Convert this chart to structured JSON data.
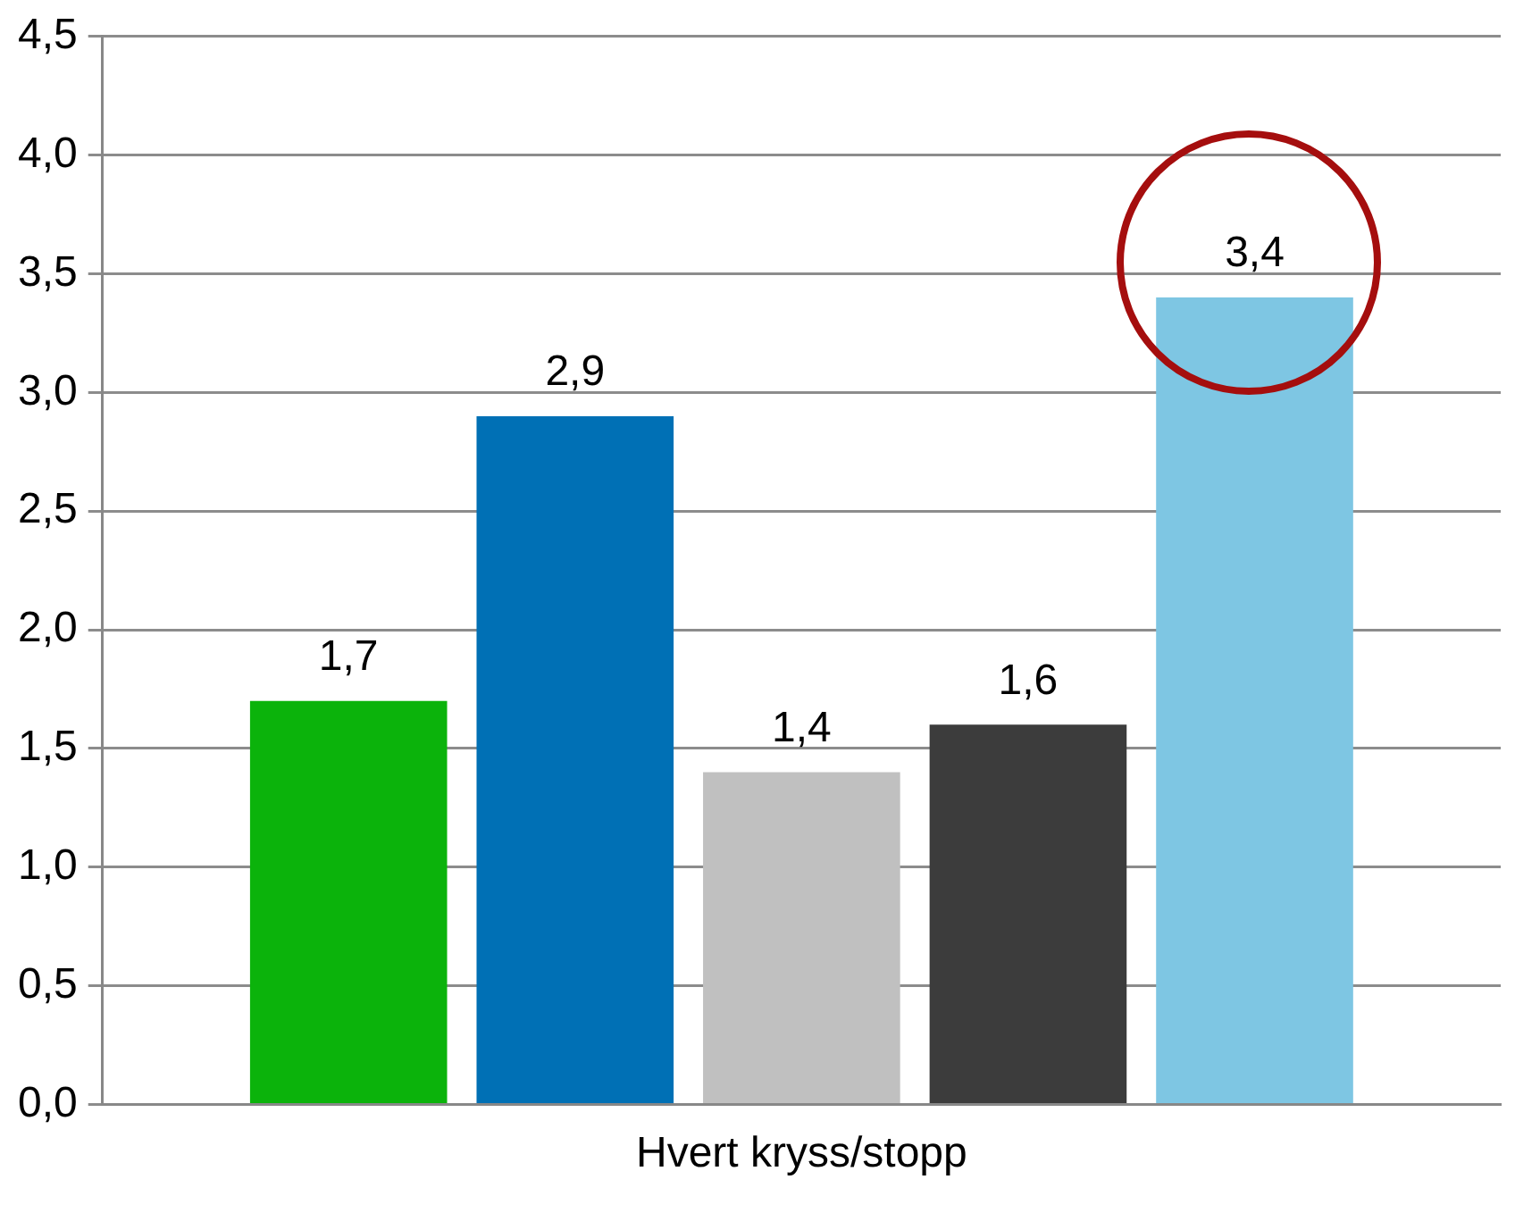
{
  "chart_data": {
    "type": "bar",
    "categories": [
      "Hvert kryss/stopp"
    ],
    "series": [
      {
        "color": "#0bb30b",
        "values": [
          1.7
        ],
        "value_labels": [
          "1,7"
        ]
      },
      {
        "color": "#0070b5",
        "values": [
          2.9
        ],
        "value_labels": [
          "2,9"
        ]
      },
      {
        "color": "#c0c0c0",
        "values": [
          1.4
        ],
        "value_labels": [
          "1,4"
        ]
      },
      {
        "color": "#3c3c3c",
        "values": [
          1.6
        ],
        "value_labels": [
          "1,6"
        ]
      },
      {
        "color": "#7ec6e3",
        "values": [
          3.4
        ],
        "value_labels": [
          "3,4"
        ]
      }
    ],
    "ylim": [
      0,
      4.5
    ],
    "yticks": [
      {
        "value": 0,
        "label": "0,0"
      },
      {
        "value": 0.5,
        "label": "0,5"
      },
      {
        "value": 1,
        "label": "1,0"
      },
      {
        "value": 1.5,
        "label": "1,5"
      },
      {
        "value": 2,
        "label": "2,0"
      },
      {
        "value": 2.5,
        "label": "2,5"
      },
      {
        "value": 3,
        "label": "3,0"
      },
      {
        "value": 3.5,
        "label": "3,5"
      },
      {
        "value": 4,
        "label": "4,0"
      },
      {
        "value": 4.5,
        "label": "4,5"
      }
    ],
    "grid": "y"
  }
}
